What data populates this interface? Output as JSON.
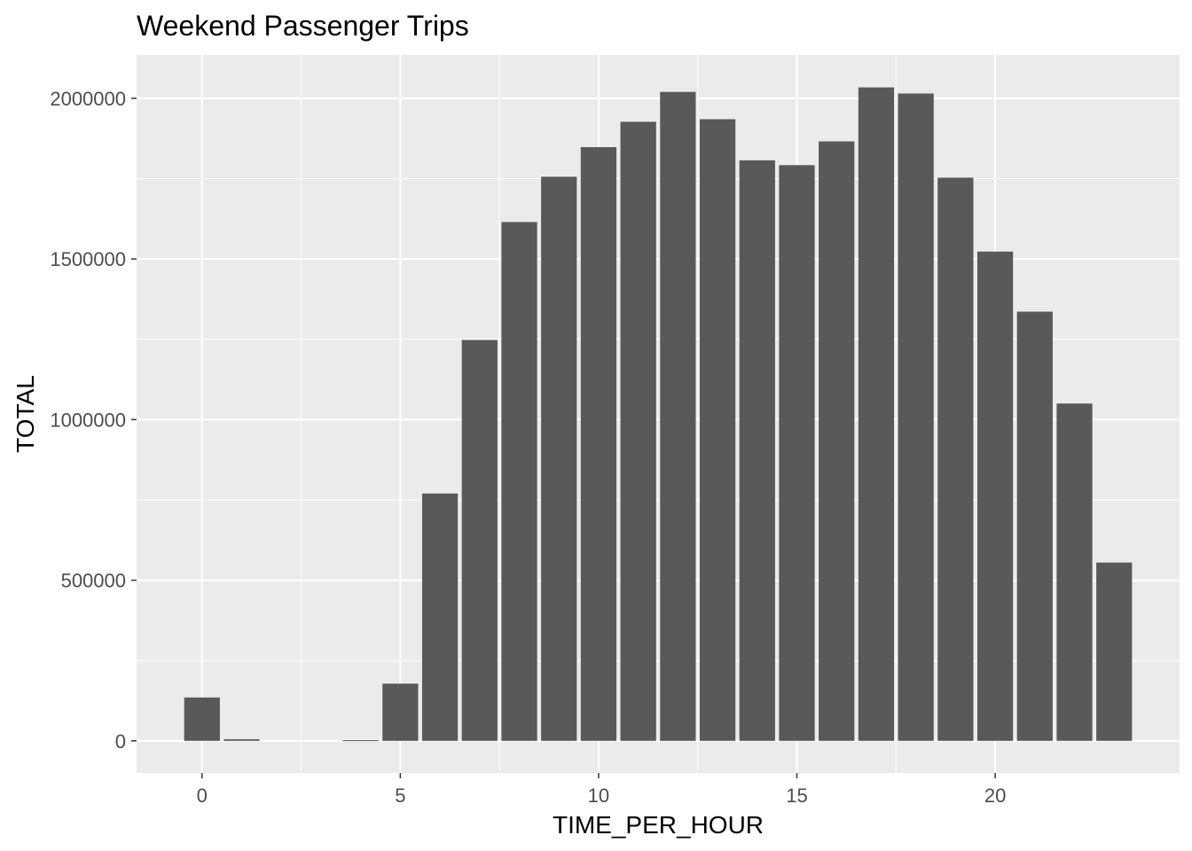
{
  "chart_data": {
    "type": "bar",
    "title": "Weekend Passenger Trips",
    "xlabel": "TIME_PER_HOUR",
    "ylabel": "TOTAL",
    "x": [
      0,
      1,
      2,
      3,
      4,
      5,
      6,
      7,
      8,
      9,
      10,
      11,
      12,
      13,
      14,
      15,
      16,
      17,
      18,
      19,
      20,
      21,
      22,
      23
    ],
    "values": [
      135000,
      5000,
      0,
      0,
      2000,
      178000,
      770000,
      1248000,
      1615000,
      1756000,
      1848000,
      1927000,
      2020000,
      1935000,
      1807000,
      1792000,
      1866000,
      2034000,
      2015000,
      1753000,
      1523000,
      1336000,
      1050000,
      555000
    ],
    "xlim": [
      -1.65,
      24.65
    ],
    "ylim": [
      -100000,
      2135000
    ],
    "x_ticks": [
      0,
      5,
      10,
      15,
      20
    ],
    "x_tick_labels": [
      "0",
      "5",
      "10",
      "15",
      "20"
    ],
    "y_ticks": [
      0,
      500000,
      1000000,
      1500000,
      2000000
    ],
    "y_tick_labels": [
      "0",
      "500000",
      "1000000",
      "1500000",
      "2000000"
    ],
    "grid": true,
    "legend": "none",
    "colors": {
      "bar": "#595959",
      "panel": "#ebebeb",
      "grid": "#ffffff",
      "text": "#000000",
      "tick_text": "#4d4d4d"
    }
  }
}
